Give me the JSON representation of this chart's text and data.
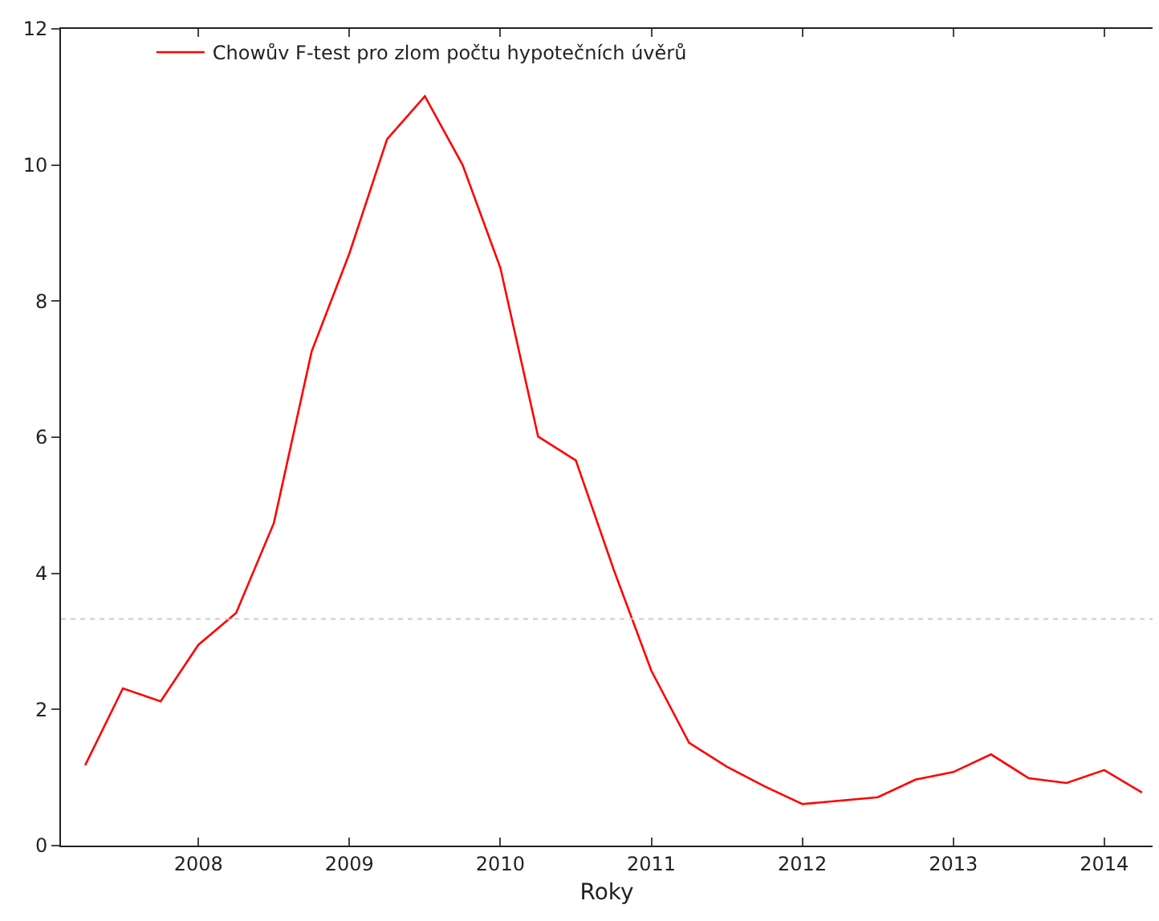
{
  "chart_data": {
    "type": "line",
    "xlabel": "Roky",
    "legend": "top left",
    "marker": "none",
    "line_style": "solid",
    "x": [
      2007.25,
      2007.5,
      2007.75,
      2008,
      2008.25,
      2008.5,
      2008.75,
      2009,
      2009.25,
      2009.5,
      2009.75,
      2010,
      2010.25,
      2010.5,
      2010.75,
      2011,
      2011.25,
      2011.5,
      2011.75,
      2012,
      2012.25,
      2012.5,
      2012.75,
      2013,
      2013.25,
      2013.5,
      2013.75,
      2014,
      2014.25
    ],
    "series": [
      {
        "name": "Chowův F-test pro zlom počtu hypotečních úvěrů",
        "color": "#ff0000",
        "values": [
          1.18,
          2.31,
          2.12,
          2.95,
          3.42,
          4.74,
          7.26,
          8.7,
          10.38,
          11.01,
          10.0,
          8.49,
          6.01,
          5.66,
          4.06,
          2.57,
          1.51,
          1.16,
          0.87,
          0.61,
          0.66,
          0.71,
          0.97,
          1.08,
          1.34,
          0.99,
          0.92,
          1.11,
          0.78
        ]
      }
    ],
    "ref_lines": [
      {
        "axis": "y",
        "value": 3.33,
        "color": "#cccccc",
        "line_style": "dotted"
      }
    ],
    "xlim": [
      2007.09,
      2014.32
    ],
    "xticks": [
      2008,
      2009,
      2010,
      2011,
      2012,
      2013,
      2014
    ],
    "ylim": [
      0,
      12
    ],
    "yticks": [
      0,
      2,
      4,
      6,
      8,
      10,
      12
    ]
  }
}
